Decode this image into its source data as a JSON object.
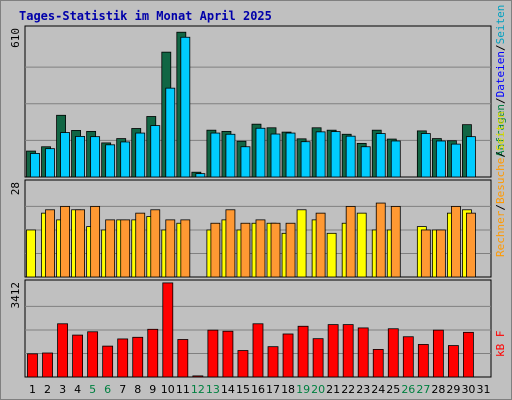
{
  "chart_data": {
    "type": "bar",
    "title": "Tages-Statistik im Monat April 2025",
    "categories": [
      "1",
      "2",
      "3",
      "4",
      "5",
      "6",
      "7",
      "8",
      "9",
      "10",
      "11",
      "12",
      "13",
      "14",
      "15",
      "16",
      "17",
      "18",
      "19",
      "20",
      "21",
      "22",
      "23",
      "24",
      "25",
      "26",
      "27",
      "28",
      "29",
      "30",
      "31"
    ],
    "weekend_days": [
      "5",
      "6",
      "12",
      "13",
      "19",
      "20",
      "26",
      "27"
    ],
    "colors": {
      "background": "#c0c0c0",
      "plot": "#c0c0c0",
      "grid": "#808080",
      "title": "#0000aa",
      "weekday_label": "#000000",
      "weekend_label": "#008040",
      "anfragen": "#116644",
      "dateien": "#00ccff",
      "seiten": "#ffff00",
      "besuche": "#ff9900",
      "rechner": "#ff9933",
      "kb": "#ff0000"
    },
    "panels": [
      {
        "name": "anfragen-dateien",
        "ymax_label": "610",
        "ymax": 610,
        "side_label": [
          {
            "text": "Anfragen",
            "color": "#008040"
          },
          {
            "text": "/",
            "color": "#000000"
          },
          {
            "text": "Dateien",
            "color": "#0000ff"
          },
          {
            "text": "/",
            "color": "#000000"
          },
          {
            "text": "Seiten",
            "color": "#00a0c0"
          }
        ],
        "series": [
          {
            "name": "Anfragen",
            "color": "#116644",
            "values": [
              108,
              126,
              257,
              194,
              190,
              142,
              160,
              202,
              252,
              520,
              603,
              20,
              195,
              190,
              149,
              220,
              205,
              187,
              159,
              205,
              195,
              178,
              140,
              195,
              158,
              0,
              192,
              160,
              151,
              218,
              0
            ]
          },
          {
            "name": "Dateien",
            "color": "#00ccff",
            "values": [
              98,
              118,
              185,
              169,
              168,
              134,
              146,
              183,
              214,
              370,
              582,
              14,
              183,
              178,
              126,
              203,
              179,
              183,
              147,
              188,
              189,
              170,
              126,
              181,
              150,
              0,
              181,
              150,
              137,
              168,
              0
            ]
          }
        ]
      },
      {
        "name": "rechner-besuche",
        "ymax_label": "28",
        "ymax": 28,
        "side_label": [
          {
            "text": "Rechner",
            "color": "#ff9900"
          },
          {
            "text": "/",
            "color": "#000000"
          },
          {
            "text": "Besuche",
            "color": "#ff9900"
          },
          {
            "text": "/",
            "color": "#000000"
          },
          {
            "text": "Seiten",
            "color": "#dddd00"
          }
        ],
        "series": [
          {
            "name": "Seiten",
            "color": "#ffff00",
            "values": [
              14,
              19,
              17,
              20,
              15,
              14,
              17,
              17,
              18,
              14,
              16,
              0,
              14,
              17,
              14,
              16,
              16,
              13,
              20,
              17,
              13,
              16,
              19,
              14,
              14,
              0,
              15,
              14,
              19,
              20,
              0
            ]
          },
          {
            "name": "Rechner",
            "color": "#ff9933",
            "values": [
              0,
              20,
              21,
              20,
              21,
              17,
              17,
              19,
              20,
              17,
              17,
              0,
              16,
              20,
              16,
              17,
              16,
              16,
              0,
              19,
              0,
              21,
              0,
              22,
              21,
              0,
              14,
              14,
              21,
              19,
              0
            ]
          }
        ]
      },
      {
        "name": "kb",
        "ymax_label": "3412",
        "ymax": 3412,
        "side_label": [
          {
            "text": "kB F",
            "color": "#ff0000"
          }
        ],
        "series": [
          {
            "name": "kB F",
            "color": "#ff0000",
            "values": [
              840,
              870,
              1930,
              1520,
              1640,
              1120,
              1380,
              1440,
              1730,
              3412,
              1360,
              40,
              1700,
              1660,
              960,
              1930,
              1100,
              1560,
              1840,
              1390,
              1900,
              1900,
              1780,
              1000,
              1750,
              1460,
              1180,
              1700,
              1140,
              1620,
              0
            ]
          }
        ]
      }
    ]
  }
}
